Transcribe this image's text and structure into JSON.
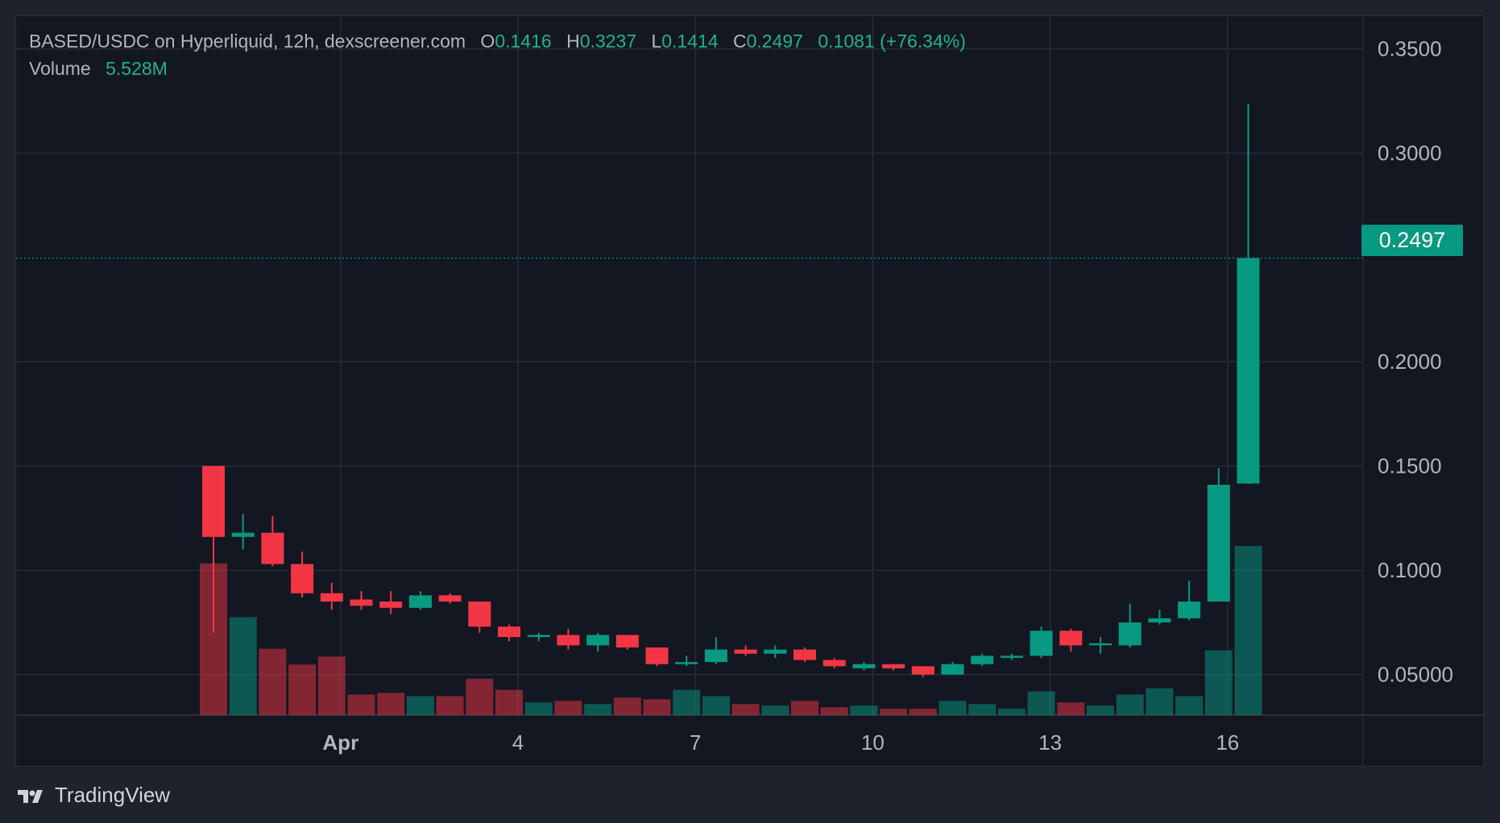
{
  "legend": {
    "pair": "BASED/USDC on Hyperliquid, 12h, dexscreener.com",
    "open_label": "O",
    "open": "0.1416",
    "high_label": "H",
    "high": "0.3237",
    "low_label": "L",
    "low": "0.1414",
    "close_label": "C",
    "close": "0.2497",
    "change": "0.1081 (+76.34%)",
    "volume_label": "Volume",
    "volume": "5.528M"
  },
  "price_badge": "0.2497",
  "footer": {
    "brand": "TradingView",
    "logo_icon": "tradingview-logo-icon"
  },
  "colors": {
    "up": "#089981",
    "down": "#f23645",
    "background": "#131722",
    "grid": "#2a2e39",
    "text": "#b2b5be"
  },
  "chart_data": {
    "type": "candlestick",
    "timeframe": "12h",
    "ylim": [
      0.0,
      0.35
    ],
    "y_ticks": [
      "0.3500",
      "0.3000",
      "0.2000",
      "0.1500",
      "0.1000",
      "0.05000"
    ],
    "x_ticks": [
      {
        "label": "Apr",
        "index": 4.3
      },
      {
        "label": "4",
        "index": 10.3
      },
      {
        "label": "7",
        "index": 16.3
      },
      {
        "label": "10",
        "index": 22.3
      },
      {
        "label": "13",
        "index": 28.3
      },
      {
        "label": "16",
        "index": 34.3
      }
    ],
    "last_price": 0.2497,
    "candles": [
      {
        "o": 0.15,
        "h": 0.15,
        "l": 0.07,
        "c": 0.116,
        "v": 0.96
      },
      {
        "o": 0.116,
        "h": 0.127,
        "l": 0.11,
        "c": 0.118,
        "v": 0.62
      },
      {
        "o": 0.118,
        "h": 0.126,
        "l": 0.102,
        "c": 0.103,
        "v": 0.42
      },
      {
        "o": 0.103,
        "h": 0.109,
        "l": 0.087,
        "c": 0.089,
        "v": 0.32
      },
      {
        "o": 0.089,
        "h": 0.094,
        "l": 0.081,
        "c": 0.085,
        "v": 0.37
      },
      {
        "o": 0.086,
        "h": 0.09,
        "l": 0.081,
        "c": 0.083,
        "v": 0.13
      },
      {
        "o": 0.085,
        "h": 0.09,
        "l": 0.079,
        "c": 0.082,
        "v": 0.14
      },
      {
        "o": 0.082,
        "h": 0.09,
        "l": 0.081,
        "c": 0.088,
        "v": 0.12
      },
      {
        "o": 0.088,
        "h": 0.089,
        "l": 0.084,
        "c": 0.085,
        "v": 0.12
      },
      {
        "o": 0.085,
        "h": 0.085,
        "l": 0.07,
        "c": 0.073,
        "v": 0.23
      },
      {
        "o": 0.073,
        "h": 0.074,
        "l": 0.066,
        "c": 0.068,
        "v": 0.16
      },
      {
        "o": 0.068,
        "h": 0.07,
        "l": 0.066,
        "c": 0.069,
        "v": 0.08
      },
      {
        "o": 0.069,
        "h": 0.072,
        "l": 0.062,
        "c": 0.064,
        "v": 0.09
      },
      {
        "o": 0.064,
        "h": 0.07,
        "l": 0.061,
        "c": 0.069,
        "v": 0.07
      },
      {
        "o": 0.069,
        "h": 0.069,
        "l": 0.062,
        "c": 0.063,
        "v": 0.11
      },
      {
        "o": 0.063,
        "h": 0.063,
        "l": 0.054,
        "c": 0.055,
        "v": 0.1
      },
      {
        "o": 0.055,
        "h": 0.059,
        "l": 0.054,
        "c": 0.056,
        "v": 0.16
      },
      {
        "o": 0.056,
        "h": 0.068,
        "l": 0.055,
        "c": 0.062,
        "v": 0.12
      },
      {
        "o": 0.062,
        "h": 0.064,
        "l": 0.059,
        "c": 0.06,
        "v": 0.07
      },
      {
        "o": 0.06,
        "h": 0.064,
        "l": 0.058,
        "c": 0.062,
        "v": 0.06
      },
      {
        "o": 0.062,
        "h": 0.063,
        "l": 0.056,
        "c": 0.057,
        "v": 0.09
      },
      {
        "o": 0.057,
        "h": 0.058,
        "l": 0.053,
        "c": 0.054,
        "v": 0.05
      },
      {
        "o": 0.053,
        "h": 0.056,
        "l": 0.052,
        "c": 0.055,
        "v": 0.06
      },
      {
        "o": 0.055,
        "h": 0.055,
        "l": 0.052,
        "c": 0.053,
        "v": 0.04
      },
      {
        "o": 0.054,
        "h": 0.054,
        "l": 0.049,
        "c": 0.05,
        "v": 0.04
      },
      {
        "o": 0.05,
        "h": 0.056,
        "l": 0.05,
        "c": 0.055,
        "v": 0.09
      },
      {
        "o": 0.055,
        "h": 0.06,
        "l": 0.054,
        "c": 0.059,
        "v": 0.07
      },
      {
        "o": 0.059,
        "h": 0.06,
        "l": 0.057,
        "c": 0.059,
        "v": 0.04
      },
      {
        "o": 0.059,
        "h": 0.073,
        "l": 0.058,
        "c": 0.071,
        "v": 0.15
      },
      {
        "o": 0.071,
        "h": 0.072,
        "l": 0.061,
        "c": 0.064,
        "v": 0.08
      },
      {
        "o": 0.065,
        "h": 0.068,
        "l": 0.06,
        "c": 0.065,
        "v": 0.06
      },
      {
        "o": 0.064,
        "h": 0.084,
        "l": 0.063,
        "c": 0.075,
        "v": 0.13
      },
      {
        "o": 0.075,
        "h": 0.081,
        "l": 0.074,
        "c": 0.077,
        "v": 0.17
      },
      {
        "o": 0.077,
        "h": 0.095,
        "l": 0.076,
        "c": 0.085,
        "v": 0.12
      },
      {
        "o": 0.085,
        "h": 0.149,
        "l": 0.085,
        "c": 0.141,
        "v": 0.41
      },
      {
        "o": 0.1416,
        "h": 0.3237,
        "l": 0.1414,
        "c": 0.2497,
        "v": 1.07
      }
    ]
  }
}
